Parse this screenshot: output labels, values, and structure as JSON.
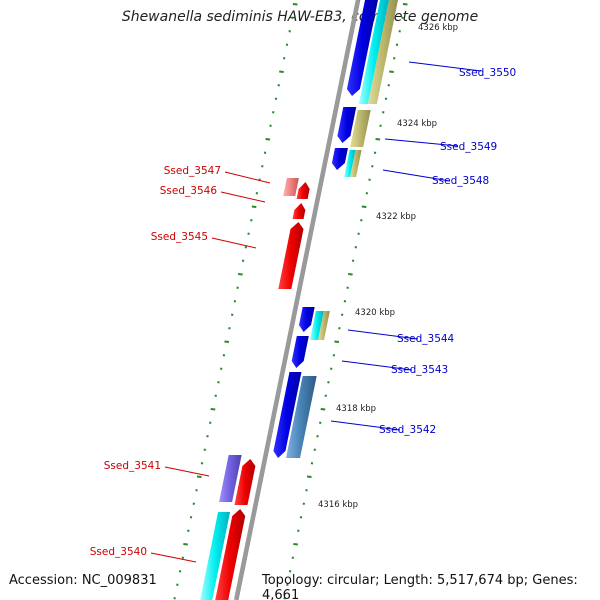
{
  "title": "Shewanella sediminis HAW-EB3, complete genome",
  "footer": {
    "accession": "Accession: NC_009831",
    "topology": "Topology: circular; Length: 5,517,674 bp; Genes: 4,661"
  },
  "scale_labels": [
    "4326 kbp",
    "4324 kbp",
    "4322 kbp",
    "4320 kbp",
    "4318 kbp",
    "4316 kbp"
  ],
  "genes": [
    {
      "id": "Ssed_3550",
      "strand": "forward",
      "color": "#0000cc"
    },
    {
      "id": "Ssed_3549",
      "strand": "forward",
      "color": "#0000cc"
    },
    {
      "id": "Ssed_3548",
      "strand": "forward",
      "color": "#0000cc"
    },
    {
      "id": "Ssed_3547",
      "strand": "reverse",
      "color": "#cc0000"
    },
    {
      "id": "Ssed_3546",
      "strand": "reverse",
      "color": "#cc0000"
    },
    {
      "id": "Ssed_3545",
      "strand": "reverse",
      "color": "#cc0000"
    },
    {
      "id": "Ssed_3544",
      "strand": "forward",
      "color": "#0000cc"
    },
    {
      "id": "Ssed_3543",
      "strand": "forward",
      "color": "#0000cc"
    },
    {
      "id": "Ssed_3542",
      "strand": "forward",
      "color": "#0000cc"
    },
    {
      "id": "Ssed_3541",
      "strand": "reverse",
      "color": "#cc0000"
    },
    {
      "id": "Ssed_3540",
      "strand": "reverse",
      "color": "#cc0000"
    }
  ],
  "colors": {
    "forward_cds": "#0000ee",
    "reverse_cds": "#ee0000",
    "backbone": "#888888",
    "ticks": "#228822",
    "cyan": "#00eeee",
    "khaki": "#bdb76b",
    "steelblue": "#4682b4",
    "slate": "#7b68ee",
    "pink": "#f08080"
  }
}
